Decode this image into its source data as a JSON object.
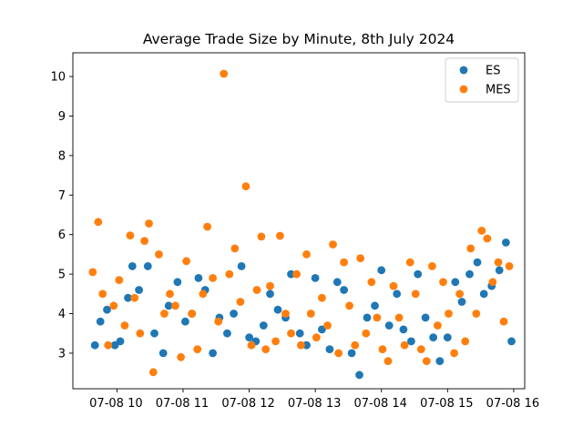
{
  "chart_data": {
    "type": "scatter",
    "title": "Average Trade Size by Minute, 8th July 2024",
    "xlabel": "",
    "ylabel": "",
    "x_unit": "time (08-Jul-2024)",
    "xlim": [
      "09:30",
      "16:00"
    ],
    "ylim": [
      2.1,
      10.6
    ],
    "x_ticks": [
      {
        "value": "10:00",
        "label": "07-08 10"
      },
      {
        "value": "11:00",
        "label": "07-08 11"
      },
      {
        "value": "12:00",
        "label": "07-08 12"
      },
      {
        "value": "13:00",
        "label": "07-08 13"
      },
      {
        "value": "14:00",
        "label": "07-08 14"
      },
      {
        "value": "15:00",
        "label": "07-08 15"
      },
      {
        "value": "16:00",
        "label": "07-08 16"
      }
    ],
    "y_ticks": [
      3,
      4,
      5,
      6,
      7,
      8,
      9,
      10
    ],
    "grid": false,
    "legend": "top-right",
    "series": [
      {
        "name": "ES",
        "color": "#1f77b4",
        "x": [
          "09:40",
          "09:45",
          "09:51",
          "09:58",
          "10:03",
          "10:10",
          "10:14",
          "10:20",
          "10:28",
          "10:34",
          "10:42",
          "10:47",
          "10:55",
          "11:02",
          "11:08",
          "11:14",
          "11:20",
          "11:27",
          "11:33",
          "11:40",
          "11:46",
          "11:53",
          "12:00",
          "12:06",
          "12:13",
          "12:19",
          "12:26",
          "12:33",
          "12:38",
          "12:46",
          "12:52",
          "13:00",
          "13:06",
          "13:13",
          "13:20",
          "13:26",
          "13:33",
          "13:40",
          "13:47",
          "13:54",
          "14:00",
          "14:07",
          "14:14",
          "14:20",
          "14:27",
          "14:33",
          "14:40",
          "14:47",
          "14:53",
          "15:00",
          "15:07",
          "15:13",
          "15:20",
          "15:27",
          "15:33",
          "15:40",
          "15:47",
          "15:53",
          "15:58"
        ],
        "y": [
          3.2,
          3.8,
          4.1,
          3.2,
          3.3,
          4.4,
          5.2,
          4.6,
          5.2,
          3.5,
          3.0,
          4.2,
          4.8,
          3.8,
          4.0,
          4.9,
          4.6,
          3.0,
          3.9,
          3.5,
          4.0,
          5.2,
          3.4,
          3.3,
          3.7,
          4.5,
          4.1,
          3.9,
          5.0,
          3.5,
          3.2,
          4.9,
          3.6,
          3.1,
          4.8,
          4.6,
          3.0,
          2.45,
          3.9,
          4.2,
          5.1,
          3.7,
          4.5,
          3.6,
          3.3,
          5.0,
          3.9,
          3.4,
          2.8,
          3.4,
          4.8,
          4.3,
          5.0,
          5.3,
          4.5,
          4.7,
          5.1,
          5.8,
          3.3
        ]
      },
      {
        "name": "MES",
        "color": "#ff7f0e",
        "x": [
          "09:38",
          "09:43",
          "09:47",
          "09:52",
          "09:57",
          "10:02",
          "10:07",
          "10:12",
          "10:16",
          "10:21",
          "10:25",
          "10:29",
          "10:33",
          "10:38",
          "10:43",
          "10:48",
          "10:53",
          "10:58",
          "11:03",
          "11:08",
          "11:13",
          "11:18",
          "11:22",
          "11:27",
          "11:32",
          "11:37",
          "11:42",
          "11:47",
          "11:52",
          "11:57",
          "12:02",
          "12:07",
          "12:11",
          "12:15",
          "12:19",
          "12:24",
          "12:28",
          "12:33",
          "12:38",
          "12:43",
          "12:47",
          "12:52",
          "12:56",
          "13:01",
          "13:06",
          "13:11",
          "13:16",
          "13:21",
          "13:26",
          "13:31",
          "13:36",
          "13:41",
          "13:46",
          "13:51",
          "13:56",
          "14:01",
          "14:06",
          "14:11",
          "14:16",
          "14:21",
          "14:26",
          "14:31",
          "14:36",
          "14:41",
          "14:46",
          "14:51",
          "14:56",
          "15:01",
          "15:06",
          "15:11",
          "15:16",
          "15:21",
          "15:26",
          "15:31",
          "15:36",
          "15:41",
          "15:46",
          "15:51",
          "15:56"
        ],
        "y": [
          5.05,
          6.32,
          4.5,
          3.2,
          4.2,
          4.85,
          3.7,
          5.98,
          4.4,
          3.5,
          5.84,
          6.28,
          2.52,
          5.5,
          4.0,
          4.5,
          4.2,
          2.9,
          5.33,
          4.0,
          3.1,
          4.5,
          6.2,
          4.9,
          3.8,
          10.07,
          5.0,
          5.65,
          4.3,
          7.22,
          3.2,
          4.6,
          5.95,
          3.1,
          4.7,
          3.3,
          5.97,
          4.0,
          3.5,
          5.0,
          3.2,
          5.5,
          4.0,
          3.4,
          4.4,
          3.7,
          5.75,
          3.0,
          5.3,
          4.2,
          3.2,
          5.4,
          3.5,
          4.8,
          3.9,
          3.1,
          2.8,
          4.7,
          3.9,
          3.2,
          5.3,
          4.5,
          3.1,
          2.8,
          5.2,
          3.7,
          4.8,
          4.0,
          3.0,
          4.5,
          3.3,
          5.65,
          4.0,
          6.1,
          5.9,
          4.8,
          5.3,
          3.8,
          5.2
        ]
      }
    ]
  }
}
